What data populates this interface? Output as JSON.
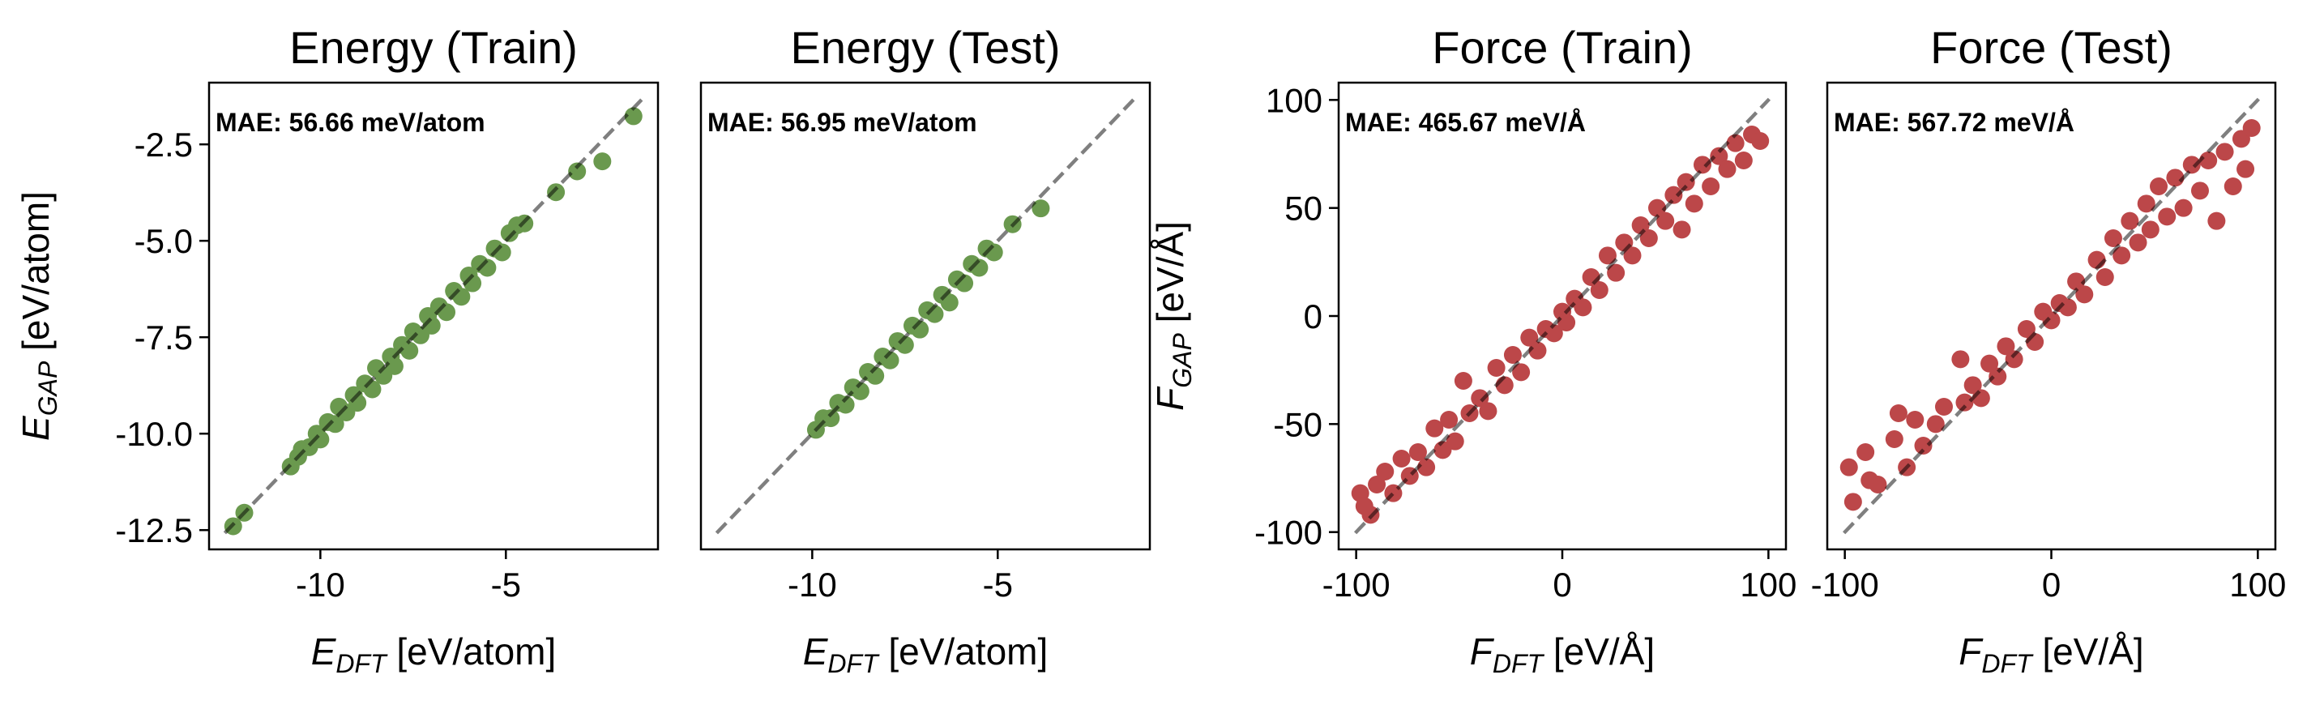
{
  "chart_data": [
    {
      "type": "scatter",
      "title": "Energy (Train)",
      "xlabel": {
        "main": "E",
        "sub": "DFT",
        "unit": " [eV/atom]"
      },
      "ylabel": {
        "main": "E",
        "sub": "GAP",
        "unit": " [eV/atom]"
      },
      "annotation": "MAE: 56.66 meV/atom",
      "xlim": [
        -13.0,
        -0.9
      ],
      "ylim": [
        -13.0,
        -0.9
      ],
      "xticks": [
        -10,
        -5
      ],
      "xtick_labels": [
        "-10",
        "-5"
      ],
      "yticks": [
        -2.5,
        -5.0,
        -7.5,
        -10.0,
        -12.5
      ],
      "ytick_labels": [
        "-2.5",
        "-5.0",
        "-7.5",
        "-10.0",
        "-12.5"
      ],
      "color": "#6a994e",
      "reference_line": "y = x (dashed)",
      "grid": false,
      "points": [
        [
          -12.35,
          -12.4
        ],
        [
          -12.05,
          -12.05
        ],
        [
          -10.8,
          -10.85
        ],
        [
          -10.6,
          -10.6
        ],
        [
          -10.5,
          -10.4
        ],
        [
          -10.3,
          -10.35
        ],
        [
          -10.1,
          -10.0
        ],
        [
          -10.0,
          -10.15
        ],
        [
          -9.8,
          -9.7
        ],
        [
          -9.6,
          -9.75
        ],
        [
          -9.5,
          -9.3
        ],
        [
          -9.3,
          -9.45
        ],
        [
          -9.1,
          -9.0
        ],
        [
          -9.0,
          -9.2
        ],
        [
          -8.8,
          -8.7
        ],
        [
          -8.6,
          -8.85
        ],
        [
          -8.5,
          -8.3
        ],
        [
          -8.3,
          -8.5
        ],
        [
          -8.1,
          -8.0
        ],
        [
          -8.0,
          -8.25
        ],
        [
          -7.8,
          -7.7
        ],
        [
          -7.6,
          -7.85
        ],
        [
          -7.5,
          -7.35
        ],
        [
          -7.3,
          -7.45
        ],
        [
          -7.1,
          -6.95
        ],
        [
          -7.0,
          -7.2
        ],
        [
          -6.8,
          -6.7
        ],
        [
          -6.6,
          -6.85
        ],
        [
          -6.4,
          -6.3
        ],
        [
          -6.2,
          -6.45
        ],
        [
          -6.0,
          -5.9
        ],
        [
          -5.9,
          -6.1
        ],
        [
          -5.7,
          -5.6
        ],
        [
          -5.5,
          -5.7
        ],
        [
          -5.3,
          -5.2
        ],
        [
          -5.1,
          -5.3
        ],
        [
          -4.9,
          -4.8
        ],
        [
          -4.7,
          -4.6
        ],
        [
          -4.5,
          -4.55
        ],
        [
          -3.65,
          -3.74
        ],
        [
          -3.08,
          -3.2
        ],
        [
          -2.4,
          -2.94
        ],
        [
          -1.56,
          -1.77
        ]
      ]
    },
    {
      "type": "scatter",
      "title": "Energy (Test)",
      "xlabel": {
        "main": "E",
        "sub": "DFT",
        "unit": " [eV/atom]"
      },
      "annotation": "MAE: 56.95 meV/atom",
      "xlim": [
        -13.0,
        -0.9
      ],
      "ylim": [
        -13.0,
        -0.9
      ],
      "xticks": [
        -10,
        -5
      ],
      "xtick_labels": [
        "-10",
        "-5"
      ],
      "yticks": [],
      "ytick_labels": [],
      "color": "#6a994e",
      "reference_line": "y = x (dashed)",
      "grid": false,
      "points": [
        [
          -9.9,
          -9.9
        ],
        [
          -9.7,
          -9.6
        ],
        [
          -9.5,
          -9.6
        ],
        [
          -9.3,
          -9.2
        ],
        [
          -9.1,
          -9.25
        ],
        [
          -8.9,
          -8.8
        ],
        [
          -8.7,
          -8.9
        ],
        [
          -8.5,
          -8.4
        ],
        [
          -8.3,
          -8.5
        ],
        [
          -8.1,
          -8.0
        ],
        [
          -7.9,
          -8.1
        ],
        [
          -7.7,
          -7.6
        ],
        [
          -7.5,
          -7.7
        ],
        [
          -7.3,
          -7.2
        ],
        [
          -7.1,
          -7.3
        ],
        [
          -6.9,
          -6.8
        ],
        [
          -6.7,
          -6.9
        ],
        [
          -6.5,
          -6.4
        ],
        [
          -6.3,
          -6.6
        ],
        [
          -6.1,
          -6.0
        ],
        [
          -5.9,
          -6.1
        ],
        [
          -5.7,
          -5.6
        ],
        [
          -5.5,
          -5.7
        ],
        [
          -5.3,
          -5.2
        ],
        [
          -5.1,
          -5.3
        ],
        [
          -4.6,
          -4.57
        ],
        [
          -3.84,
          -4.16
        ]
      ]
    },
    {
      "type": "scatter",
      "title": "Force (Train)",
      "xlabel": {
        "main": "F",
        "sub": "DFT",
        "unit": " [eV/Å]"
      },
      "ylabel": {
        "main": "F",
        "sub": "GAP",
        "unit": " [eV/Å]"
      },
      "annotation": "MAE: 465.67 meV/Å",
      "xlim": [
        -108.5,
        108.5
      ],
      "ylim": [
        -108,
        108
      ],
      "xticks": [
        -100,
        0,
        100
      ],
      "xtick_labels": [
        "-100",
        "0",
        "100"
      ],
      "yticks": [
        100,
        50,
        0,
        -50,
        -100
      ],
      "ytick_labels": [
        "100",
        "50",
        "0",
        "-50",
        "-100"
      ],
      "color": "#bc4749",
      "reference_line": "y = x (dashed)",
      "grid": false,
      "points": [
        [
          -98,
          -82
        ],
        [
          -96,
          -88
        ],
        [
          -93,
          -92
        ],
        [
          -90,
          -78
        ],
        [
          -86,
          -72
        ],
        [
          -82,
          -82
        ],
        [
          -78,
          -66
        ],
        [
          -74,
          -74
        ],
        [
          -70,
          -63
        ],
        [
          -66,
          -70
        ],
        [
          -62,
          -52
        ],
        [
          -58,
          -62
        ],
        [
          -55,
          -48
        ],
        [
          -52,
          -58
        ],
        [
          -48,
          -30
        ],
        [
          -45,
          -45
        ],
        [
          -40,
          -38
        ],
        [
          -36,
          -44
        ],
        [
          -32,
          -24
        ],
        [
          -28,
          -32
        ],
        [
          -24,
          -18
        ],
        [
          -20,
          -26
        ],
        [
          -16,
          -10
        ],
        [
          -12,
          -16
        ],
        [
          -8,
          -6
        ],
        [
          -4,
          -8
        ],
        [
          0,
          2
        ],
        [
          2,
          -3
        ],
        [
          6,
          8
        ],
        [
          10,
          4
        ],
        [
          14,
          18
        ],
        [
          18,
          12
        ],
        [
          22,
          28
        ],
        [
          26,
          20
        ],
        [
          30,
          34
        ],
        [
          34,
          28
        ],
        [
          38,
          42
        ],
        [
          42,
          36
        ],
        [
          46,
          50
        ],
        [
          50,
          44
        ],
        [
          54,
          56
        ],
        [
          58,
          40
        ],
        [
          60,
          62
        ],
        [
          64,
          52
        ],
        [
          68,
          70
        ],
        [
          72,
          60
        ],
        [
          76,
          74
        ],
        [
          80,
          68
        ],
        [
          84,
          80
        ],
        [
          88,
          72
        ],
        [
          92,
          84
        ],
        [
          96,
          81
        ]
      ]
    },
    {
      "type": "scatter",
      "title": "Force (Test)",
      "xlabel": {
        "main": "F",
        "sub": "DFT",
        "unit": " [eV/Å]"
      },
      "annotation": "MAE: 567.72 meV/Å",
      "xlim": [
        -108.5,
        108.5
      ],
      "ylim": [
        -108,
        108
      ],
      "xticks": [
        -100,
        0,
        100
      ],
      "xtick_labels": [
        "-100",
        "0",
        "100"
      ],
      "yticks": [],
      "ytick_labels": [],
      "color": "#bc4749",
      "reference_line": "y = x (dashed)",
      "grid": false,
      "points": [
        [
          -98,
          -70
        ],
        [
          -96,
          -86
        ],
        [
          -90,
          -63
        ],
        [
          -88,
          -76
        ],
        [
          -84,
          -78
        ],
        [
          -76,
          -57
        ],
        [
          -74,
          -45
        ],
        [
          -70,
          -70
        ],
        [
          -66,
          -48
        ],
        [
          -62,
          -60
        ],
        [
          -56,
          -50
        ],
        [
          -52,
          -42
        ],
        [
          -44,
          -20
        ],
        [
          -42,
          -40
        ],
        [
          -38,
          -32
        ],
        [
          -34,
          -38
        ],
        [
          -30,
          -22
        ],
        [
          -26,
          -28
        ],
        [
          -22,
          -14
        ],
        [
          -18,
          -20
        ],
        [
          -12,
          -6
        ],
        [
          -8,
          -12
        ],
        [
          -4,
          2
        ],
        [
          0,
          -2
        ],
        [
          4,
          6
        ],
        [
          8,
          4
        ],
        [
          12,
          16
        ],
        [
          16,
          10
        ],
        [
          22,
          26
        ],
        [
          26,
          18
        ],
        [
          30,
          36
        ],
        [
          34,
          28
        ],
        [
          38,
          44
        ],
        [
          42,
          34
        ],
        [
          46,
          52
        ],
        [
          48,
          40
        ],
        [
          52,
          60
        ],
        [
          56,
          46
        ],
        [
          60,
          64
        ],
        [
          64,
          50
        ],
        [
          68,
          70
        ],
        [
          72,
          58
        ],
        [
          76,
          72
        ],
        [
          80,
          44
        ],
        [
          84,
          76
        ],
        [
          88,
          60
        ],
        [
          92,
          82
        ],
        [
          94,
          68
        ],
        [
          97,
          87
        ]
      ]
    }
  ]
}
